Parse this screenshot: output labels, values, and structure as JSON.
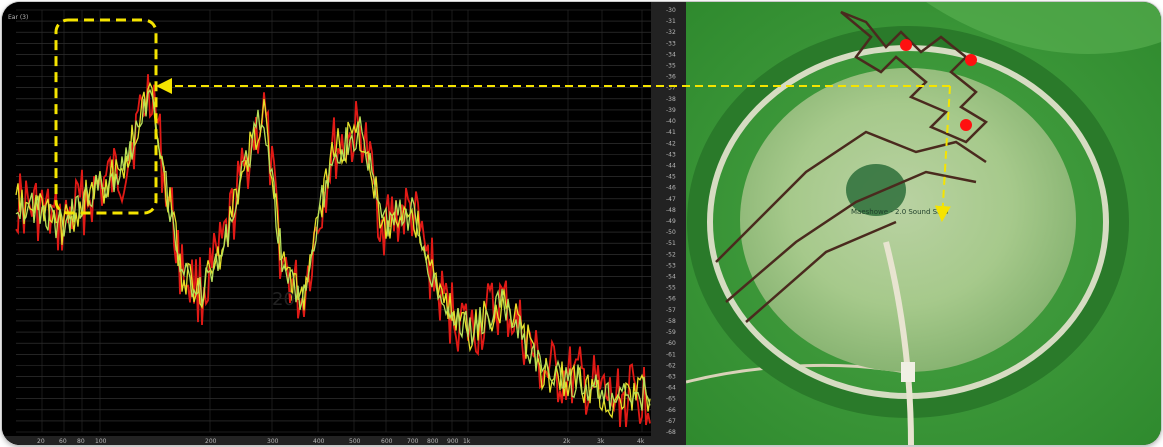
{
  "spectrum": {
    "corner_label": "Ear (3)",
    "center_label": "20",
    "y_ticks": [
      "-30",
      "-31",
      "-32",
      "-33",
      "-34",
      "-35",
      "-36",
      "-37",
      "-38",
      "-39",
      "-40",
      "-41",
      "-42",
      "-43",
      "-44",
      "-45",
      "-46",
      "-47",
      "-48",
      "-49",
      "-50",
      "-51",
      "-52",
      "-53",
      "-54",
      "-55",
      "-56",
      "-57",
      "-58",
      "-59",
      "-60",
      "-61",
      "-62",
      "-63",
      "-64",
      "-65",
      "-66",
      "-67",
      "-68"
    ],
    "x_ticks": [
      "20",
      "60",
      "80",
      "100",
      "200",
      "300",
      "400",
      "500",
      "600",
      "700",
      "800",
      "900",
      "1k",
      "2k",
      "3k",
      "4k"
    ],
    "colors": {
      "red": "#e01a16",
      "green": "#b8e05a",
      "yellow": "#e6e12a",
      "highlight": "#f5e400"
    }
  },
  "aerial": {
    "annotation": "Maeshowe - 2.0 Sound Sato"
  }
}
